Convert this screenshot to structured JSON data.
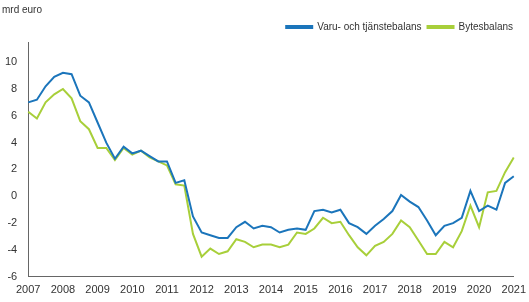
{
  "chart_data": {
    "type": "line",
    "y_label": "mrd euro",
    "categories": [
      "2007",
      null,
      null,
      null,
      "2008",
      null,
      null,
      null,
      "2009",
      null,
      null,
      null,
      "2010",
      null,
      null,
      null,
      "2011",
      null,
      null,
      null,
      "2012",
      null,
      null,
      null,
      "2013",
      null,
      null,
      null,
      "2014",
      null,
      null,
      null,
      "2015",
      null,
      null,
      null,
      "2016",
      null,
      null,
      null,
      "2017",
      null,
      null,
      null,
      "2018",
      null,
      null,
      null,
      "2019",
      null,
      null,
      null,
      "2020",
      null,
      null,
      null,
      "2021"
    ],
    "series": [
      {
        "name": "Varu- och tjänstebalans",
        "color": "#1b75bb",
        "values": [
          7.0,
          7.2,
          8.2,
          8.9,
          9.2,
          9.1,
          7.5,
          7.0,
          5.5,
          4.0,
          2.8,
          3.7,
          3.2,
          3.4,
          3.0,
          2.6,
          2.6,
          1.0,
          1.2,
          -1.5,
          -2.7,
          -2.9,
          -3.1,
          -3.1,
          -2.3,
          -1.9,
          -2.4,
          -2.2,
          -2.3,
          -2.7,
          -2.5,
          -2.4,
          -2.5,
          -1.1,
          -1.0,
          -1.2,
          -1.0,
          -2.0,
          -2.3,
          -2.8,
          -2.2,
          -1.7,
          -1.1,
          0.1,
          -0.4,
          -0.8,
          -1.8,
          -2.9,
          -2.2,
          -2.0,
          -1.6,
          0.4,
          -1.1,
          -0.7,
          -1.0,
          1.0,
          1.5
        ]
      },
      {
        "name": "Bytesbalans",
        "color": "#a8cf3a",
        "values": [
          6.3,
          5.8,
          7.0,
          7.6,
          8.0,
          7.3,
          5.6,
          5.0,
          3.6,
          3.6,
          2.7,
          3.6,
          3.1,
          3.4,
          2.9,
          2.6,
          2.3,
          0.9,
          0.8,
          -2.8,
          -4.5,
          -3.9,
          -4.3,
          -4.1,
          -3.2,
          -3.4,
          -3.8,
          -3.6,
          -3.6,
          -3.8,
          -3.6,
          -2.7,
          -2.8,
          -2.4,
          -1.6,
          -2.0,
          -1.9,
          -2.9,
          -3.8,
          -4.4,
          -3.7,
          -3.4,
          -2.8,
          -1.8,
          -2.3,
          -3.3,
          -4.3,
          -4.3,
          -3.4,
          -3.8,
          -2.6,
          -0.7,
          -2.3,
          0.3,
          0.4,
          1.8,
          2.9
        ]
      }
    ],
    "ylim": [
      -6,
      11.5
    ],
    "yticks": [
      -6,
      -4,
      -2,
      0,
      2,
      4,
      6,
      8,
      10
    ],
    "grid": false,
    "legend": "top-right"
  }
}
